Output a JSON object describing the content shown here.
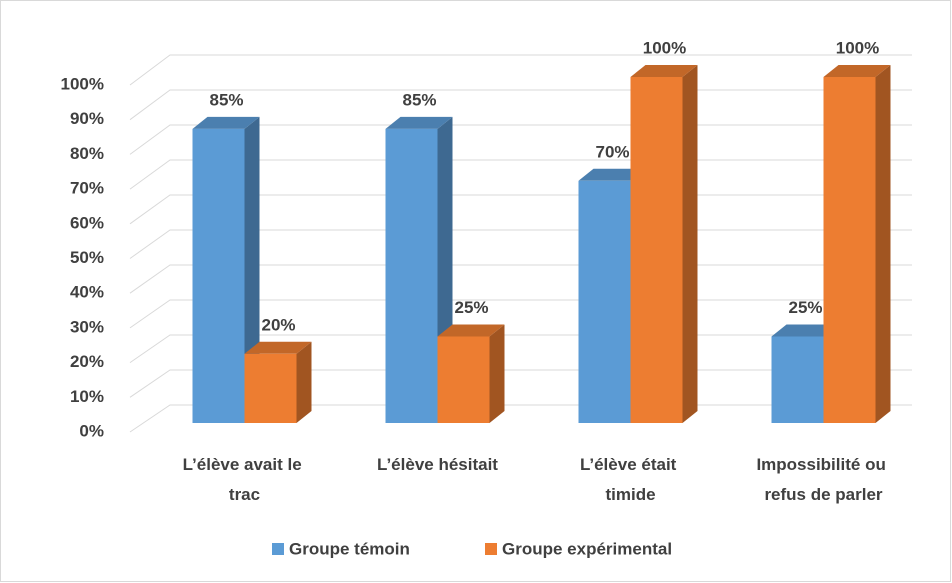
{
  "chart_data": {
    "type": "bar3d",
    "categories": [
      "L’élève avait le trac",
      "L’élève hésitait",
      "L’élève était timide",
      "Impossibilité ou refus de parler"
    ],
    "series": [
      {
        "name": "Groupe témoin",
        "color": "#5b9bd5",
        "values": [
          85,
          85,
          70,
          25
        ],
        "value_labels": [
          "85%",
          "85%",
          "70%",
          "25%"
        ]
      },
      {
        "name": "Groupe expérimental",
        "color": "#ed7d31",
        "values": [
          20,
          25,
          100,
          100
        ],
        "value_labels": [
          "20%",
          "25%",
          "100%",
          "100%"
        ]
      }
    ],
    "ylim": [
      0,
      100
    ],
    "yticks": [
      {
        "value": 0,
        "label": "0%"
      },
      {
        "value": 10,
        "label": "10%"
      },
      {
        "value": 20,
        "label": "20%"
      },
      {
        "value": 30,
        "label": "30%"
      },
      {
        "value": 40,
        "label": "40%"
      },
      {
        "value": 50,
        "label": "50%"
      },
      {
        "value": 60,
        "label": "60%"
      },
      {
        "value": 70,
        "label": "70%"
      },
      {
        "value": 80,
        "label": "80%"
      },
      {
        "value": 90,
        "label": "90%"
      },
      {
        "value": 100,
        "label": "100%"
      }
    ],
    "grid": true,
    "legend": "bottom"
  }
}
